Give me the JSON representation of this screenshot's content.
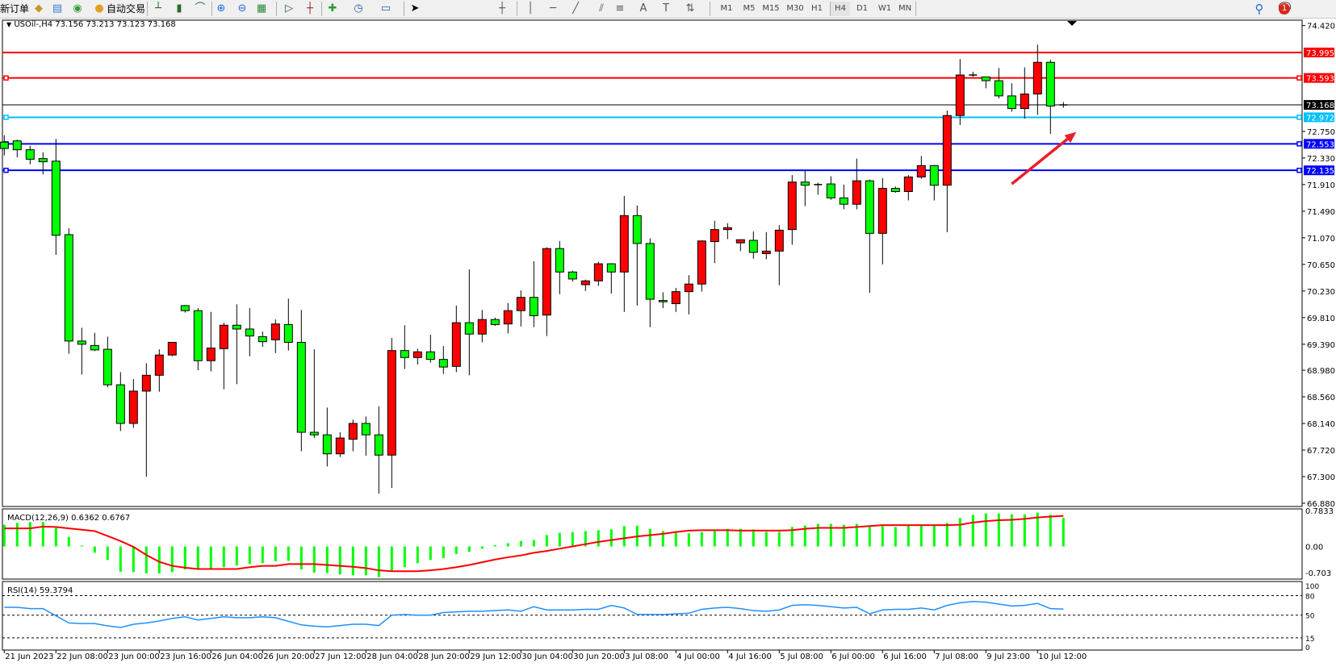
{
  "toolbar": {
    "new_order_label": "新订单",
    "autotrade_label": "自动交易",
    "icons": [
      "market-watch-icon",
      "navigator-icon",
      "signals-icon",
      "autotrade-icon",
      "bar-chart-icon",
      "candlestick-icon",
      "line-chart-icon",
      "zoom-in-icon",
      "zoom-out-icon",
      "tile-windows-icon",
      "auto-scroll-icon",
      "chart-shift-icon",
      "indicators-icon",
      "periods-icon",
      "templates-icon",
      "cursor-icon",
      "crosshair-icon",
      "vertical-line-icon",
      "horizontal-line-icon",
      "trendline-icon",
      "equidistant-channel-icon",
      "fibonacci-icon",
      "text-icon",
      "text-label-icon",
      "arrows-icon"
    ],
    "timeframes": [
      "M1",
      "M5",
      "M15",
      "M30",
      "H1",
      "H4",
      "D1",
      "W1",
      "MN"
    ],
    "selected_timeframe": "H4",
    "notification_count": "1"
  },
  "chart": {
    "header": "USOil-,H4  73.156 73.213 73.123 73.168",
    "macd_label": "MACD(12,26,9) 0.6362 0.6767",
    "rsi_label": "RSI(14) 59.3794",
    "colors": {
      "bull": "#ff0000",
      "bear": "#00ff00",
      "macd_hist": "#00ff00",
      "macd_signal": "#ff0000",
      "rsi": "#1e90ff",
      "arrow": "#e8202a"
    }
  },
  "chart_data": {
    "type": "candlestick",
    "symbol": "USOil-",
    "timeframe": "H4",
    "ylim": [
      66.88,
      74.42
    ],
    "price_ticks": [
      "74.420",
      "72.750",
      "72.330",
      "71.910",
      "71.490",
      "71.070",
      "70.650",
      "70.230",
      "69.810",
      "69.390",
      "68.980",
      "68.560",
      "68.140",
      "67.720",
      "67.300",
      "66.880"
    ],
    "time_labels": [
      {
        "bar": 0,
        "label": "21 Jun 2023"
      },
      {
        "bar": 4,
        "label": "22 Jun 08:00"
      },
      {
        "bar": 8,
        "label": "23 Jun 00:00"
      },
      {
        "bar": 12,
        "label": "23 Jun 16:00"
      },
      {
        "bar": 16,
        "label": "26 Jun 04:00"
      },
      {
        "bar": 20,
        "label": "26 Jun 20:00"
      },
      {
        "bar": 24,
        "label": "27 Jun 12:00"
      },
      {
        "bar": 28,
        "label": "28 Jun 04:00"
      },
      {
        "bar": 32,
        "label": "28 Jun 20:00"
      },
      {
        "bar": 36,
        "label": "29 Jun 12:00"
      },
      {
        "bar": 40,
        "label": "30 Jun 04:00"
      },
      {
        "bar": 44,
        "label": "30 Jun 20:00"
      },
      {
        "bar": 48,
        "label": "3 Jul 08:00"
      },
      {
        "bar": 52,
        "label": "4 Jul 00:00"
      },
      {
        "bar": 56,
        "label": "4 Jul 16:00"
      },
      {
        "bar": 60,
        "label": "5 Jul 08:00"
      },
      {
        "bar": 64,
        "label": "6 Jul 00:00"
      },
      {
        "bar": 68,
        "label": "6 Jul 16:00"
      },
      {
        "bar": 72,
        "label": "7 Jul 08:00"
      },
      {
        "bar": 76,
        "label": "9 Jul 23:00"
      },
      {
        "bar": 80,
        "label": "10 Jul 12:00"
      }
    ],
    "ohlc": [
      [
        72.58,
        72.69,
        72.37,
        72.48
      ],
      [
        72.6,
        72.62,
        72.34,
        72.46
      ],
      [
        72.46,
        72.52,
        72.23,
        72.31
      ],
      [
        72.32,
        72.42,
        72.07,
        72.27
      ],
      [
        72.28,
        72.63,
        70.8,
        71.11
      ],
      [
        71.12,
        71.22,
        69.24,
        69.44
      ],
      [
        69.44,
        69.65,
        68.91,
        69.39
      ],
      [
        69.37,
        69.57,
        69.28,
        69.3
      ],
      [
        69.31,
        69.51,
        68.71,
        68.75
      ],
      [
        68.75,
        68.95,
        68.02,
        68.14
      ],
      [
        68.14,
        68.84,
        68.07,
        68.65
      ],
      [
        68.65,
        69.09,
        67.3,
        68.9
      ],
      [
        68.9,
        69.31,
        68.64,
        69.22
      ],
      [
        69.22,
        69.42,
        69.2,
        69.42
      ],
      [
        70.0,
        70.01,
        69.89,
        69.92
      ],
      [
        69.92,
        69.96,
        68.98,
        69.13
      ],
      [
        69.13,
        69.9,
        68.96,
        69.33
      ],
      [
        69.32,
        69.73,
        68.68,
        69.69
      ],
      [
        69.69,
        70.02,
        68.76,
        69.63
      ],
      [
        69.63,
        69.96,
        69.2,
        69.52
      ],
      [
        69.51,
        69.59,
        69.35,
        69.43
      ],
      [
        69.46,
        69.78,
        69.25,
        69.71
      ],
      [
        69.7,
        70.11,
        69.29,
        69.42
      ],
      [
        69.42,
        69.93,
        67.7,
        68.0
      ],
      [
        68.0,
        69.31,
        67.91,
        67.96
      ],
      [
        67.96,
        68.39,
        67.46,
        67.66
      ],
      [
        67.66,
        68.0,
        67.61,
        67.91
      ],
      [
        67.89,
        68.2,
        67.7,
        68.14
      ],
      [
        68.14,
        68.25,
        67.63,
        67.96
      ],
      [
        67.96,
        68.41,
        67.03,
        67.64
      ],
      [
        67.64,
        69.49,
        67.12,
        69.29
      ],
      [
        69.29,
        69.69,
        69.0,
        69.18
      ],
      [
        69.18,
        69.32,
        69.07,
        69.27
      ],
      [
        69.27,
        69.54,
        69.1,
        69.15
      ],
      [
        69.15,
        69.36,
        68.92,
        69.03
      ],
      [
        69.04,
        70.0,
        68.95,
        69.73
      ],
      [
        69.73,
        70.57,
        68.9,
        69.55
      ],
      [
        69.55,
        69.93,
        69.42,
        69.78
      ],
      [
        69.78,
        69.81,
        69.68,
        69.7
      ],
      [
        69.71,
        70.04,
        69.56,
        69.92
      ],
      [
        69.92,
        70.24,
        69.67,
        70.13
      ],
      [
        70.13,
        70.7,
        69.66,
        69.84
      ],
      [
        69.85,
        70.92,
        69.52,
        70.9
      ],
      [
        70.9,
        71.02,
        70.18,
        70.53
      ],
      [
        70.53,
        70.55,
        70.38,
        70.42
      ],
      [
        70.33,
        70.41,
        70.23,
        70.39
      ],
      [
        70.39,
        70.69,
        70.31,
        70.66
      ],
      [
        70.66,
        70.67,
        70.19,
        70.53
      ],
      [
        70.53,
        71.73,
        69.9,
        71.42
      ],
      [
        71.42,
        71.58,
        70.0,
        70.98
      ],
      [
        70.98,
        71.06,
        69.66,
        70.1
      ],
      [
        70.08,
        70.21,
        69.96,
        70.06
      ],
      [
        70.03,
        70.28,
        69.9,
        70.22
      ],
      [
        70.22,
        70.48,
        69.86,
        70.34
      ],
      [
        70.34,
        71.03,
        70.22,
        71.02
      ],
      [
        71.01,
        71.34,
        70.67,
        71.2
      ],
      [
        71.2,
        71.3,
        71.05,
        71.23
      ],
      [
        70.99,
        71.04,
        70.86,
        71.04
      ],
      [
        71.03,
        71.17,
        70.74,
        70.84
      ],
      [
        70.82,
        71.16,
        70.73,
        70.86
      ],
      [
        70.86,
        71.27,
        70.32,
        71.19
      ],
      [
        71.2,
        72.06,
        70.96,
        71.95
      ],
      [
        71.95,
        72.13,
        71.57,
        71.9
      ],
      [
        71.91,
        71.94,
        71.75,
        71.91
      ],
      [
        71.92,
        72.04,
        71.67,
        71.7
      ],
      [
        71.7,
        71.91,
        71.52,
        71.6
      ],
      [
        71.6,
        72.32,
        71.52,
        71.97
      ],
      [
        71.97,
        71.99,
        70.2,
        71.14
      ],
      [
        71.14,
        72.01,
        70.65,
        71.85
      ],
      [
        71.85,
        71.88,
        71.78,
        71.8
      ],
      [
        71.8,
        72.06,
        71.66,
        72.03
      ],
      [
        72.03,
        72.36,
        72.0,
        72.21
      ],
      [
        72.21,
        72.22,
        71.66,
        71.9
      ],
      [
        71.9,
        73.08,
        71.16,
        73.0
      ],
      [
        73.0,
        73.89,
        72.85,
        73.64
      ],
      [
        73.64,
        73.69,
        73.61,
        73.64
      ],
      [
        73.61,
        73.61,
        73.43,
        73.55
      ],
      [
        73.55,
        73.75,
        73.27,
        73.31
      ],
      [
        73.31,
        73.51,
        73.06,
        73.11
      ],
      [
        73.11,
        73.76,
        72.95,
        73.34
      ],
      [
        73.34,
        74.12,
        73.01,
        73.84
      ],
      [
        73.84,
        73.88,
        72.71,
        73.15
      ],
      [
        73.156,
        73.213,
        73.123,
        73.168
      ]
    ],
    "current_price": {
      "value": 73.168,
      "label": "73.168",
      "color": "#000000"
    },
    "horizontal_lines": [
      {
        "value": 73.995,
        "label": "73.995",
        "color": "#ff0000",
        "handles": false
      },
      {
        "value": 73.593,
        "label": "73.593",
        "color": "#ff0000",
        "handles": true
      },
      {
        "value": 72.972,
        "label": "72.972",
        "color": "#00bfff",
        "handles": true
      },
      {
        "value": 72.553,
        "label": "72.553",
        "color": "#0000ff",
        "handles": true
      },
      {
        "value": 72.135,
        "label": "72.135",
        "color": "#0000ff",
        "handles": true
      }
    ],
    "annotation_arrow": {
      "from": {
        "bar": 78,
        "price": 71.92
      },
      "to": {
        "bar": 83,
        "price": 72.74
      },
      "color": "#e8202a"
    },
    "macd": {
      "ticks": [
        "0.7833",
        "0.00",
        "-0.703"
      ],
      "ylim": [
        -0.703,
        0.7833
      ],
      "histogram": [
        0.48,
        0.52,
        0.54,
        0.54,
        0.41,
        0.21,
        0.02,
        -0.14,
        -0.3,
        -0.56,
        -0.57,
        -0.6,
        -0.6,
        -0.57,
        -0.51,
        -0.5,
        -0.5,
        -0.46,
        -0.42,
        -0.39,
        -0.37,
        -0.33,
        -0.32,
        -0.51,
        -0.58,
        -0.59,
        -0.62,
        -0.64,
        -0.64,
        -0.68,
        -0.54,
        -0.46,
        -0.37,
        -0.3,
        -0.26,
        -0.17,
        -0.12,
        -0.05,
        0.03,
        0.07,
        0.12,
        0.14,
        0.25,
        0.3,
        0.32,
        0.34,
        0.36,
        0.38,
        0.45,
        0.46,
        0.39,
        0.34,
        0.3,
        0.29,
        0.32,
        0.36,
        0.39,
        0.39,
        0.38,
        0.32,
        0.32,
        0.43,
        0.46,
        0.5,
        0.5,
        0.48,
        0.5,
        0.45,
        0.45,
        0.43,
        0.46,
        0.46,
        0.46,
        0.52,
        0.63,
        0.7,
        0.73,
        0.73,
        0.71,
        0.71,
        0.75,
        0.7,
        0.6362
      ],
      "signal": [
        0.4,
        0.4,
        0.4,
        0.44,
        0.43,
        0.4,
        0.37,
        0.34,
        0.23,
        0.12,
        -0.01,
        -0.19,
        -0.34,
        -0.43,
        -0.47,
        -0.5,
        -0.5,
        -0.5,
        -0.5,
        -0.46,
        -0.43,
        -0.43,
        -0.39,
        -0.39,
        -0.39,
        -0.41,
        -0.43,
        -0.45,
        -0.48,
        -0.53,
        -0.55,
        -0.55,
        -0.55,
        -0.53,
        -0.5,
        -0.46,
        -0.41,
        -0.35,
        -0.29,
        -0.24,
        -0.2,
        -0.14,
        -0.1,
        -0.05,
        0.0,
        0.05,
        0.1,
        0.14,
        0.18,
        0.22,
        0.25,
        0.28,
        0.32,
        0.35,
        0.36,
        0.36,
        0.36,
        0.35,
        0.35,
        0.35,
        0.35,
        0.36,
        0.39,
        0.41,
        0.41,
        0.41,
        0.43,
        0.45,
        0.47,
        0.47,
        0.47,
        0.47,
        0.47,
        0.47,
        0.48,
        0.53,
        0.56,
        0.58,
        0.59,
        0.61,
        0.64,
        0.66,
        0.6767
      ]
    },
    "rsi": {
      "ticks": [
        "100",
        "80",
        "50",
        "15",
        "0"
      ],
      "levels": [
        80,
        50,
        15
      ],
      "ylim": [
        0,
        100
      ],
      "values": [
        62,
        62,
        60,
        60,
        49,
        38,
        37,
        37,
        33.5,
        31,
        36,
        38,
        41,
        45,
        47.5,
        42.5,
        45,
        47.5,
        46,
        46,
        47.5,
        46,
        40.5,
        35,
        33,
        32,
        34,
        36,
        36,
        34,
        50,
        51,
        50,
        50,
        54,
        55,
        56,
        56,
        57,
        58,
        56,
        63,
        58,
        58,
        58,
        59,
        59,
        65,
        61,
        51,
        51,
        51,
        52,
        53,
        59,
        61,
        62,
        60,
        57,
        56,
        58,
        65,
        66,
        65,
        63,
        61,
        62,
        52,
        58,
        59,
        59,
        61,
        58,
        65,
        69,
        71,
        70,
        67,
        64,
        65,
        68,
        60,
        59.3794
      ]
    }
  }
}
